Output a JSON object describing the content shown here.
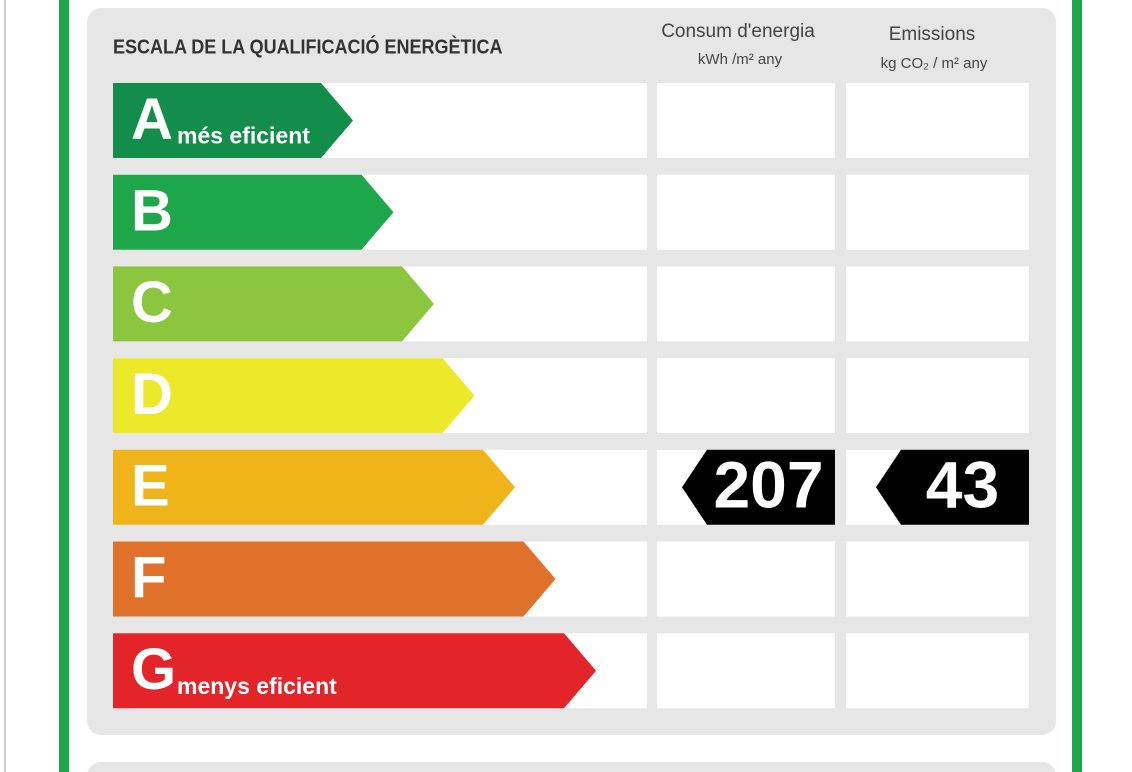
{
  "header": {
    "title": "ESCALA DE LA QUALIFICACIÓ ENERGÈTICA",
    "columns": [
      {
        "title": "Consum d'energia",
        "unit": "kWh /m² any"
      },
      {
        "title": "Emissions",
        "unit": "kg CO₂ / m² any"
      }
    ]
  },
  "rows": [
    {
      "letter": "A",
      "label": "més eficient",
      "color": "#138e4a"
    },
    {
      "letter": "B",
      "color": "#1ea64a"
    },
    {
      "letter": "C",
      "color": "#8cc63f"
    },
    {
      "letter": "D",
      "color": "#ece92b"
    },
    {
      "letter": "E",
      "color": "#f0b41b",
      "consum": 207,
      "emissions": 43
    },
    {
      "letter": "F",
      "color": "#e0712a"
    },
    {
      "letter": "G",
      "label": "menys eficient",
      "color": "#e3252a"
    }
  ]
}
